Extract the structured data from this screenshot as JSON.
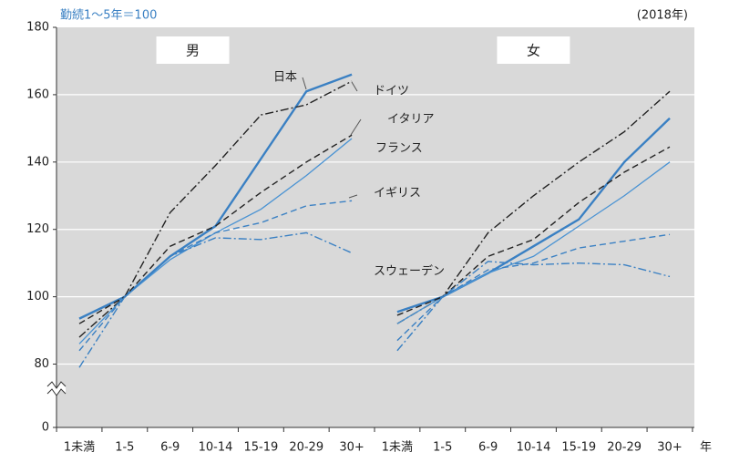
{
  "chart_data": {
    "type": "line",
    "y_label": "勤続1～5年＝100",
    "note": "(2018年)",
    "x_unit": "年",
    "ylim": [
      0,
      180
    ],
    "yticks": [
      0,
      80,
      100,
      120,
      140,
      160,
      180
    ],
    "y_break": [
      0,
      75
    ],
    "grid": true,
    "panels": [
      {
        "label": "男",
        "categories": [
          "1未満",
          "1-5",
          "6-9",
          "10-14",
          "15-19",
          "20-29",
          "30+"
        ],
        "series": [
          {
            "name": "日本",
            "color": "#3a80c3",
            "linestyle": "solid",
            "linewidth": 2.4,
            "values": [
              93.5,
              100,
              112,
              121,
              141,
              161,
              166
            ]
          },
          {
            "name": "ドイツ",
            "color": "#222222",
            "linestyle": "dashdot",
            "linewidth": 1.4,
            "values": [
              88,
              100,
              125,
              139,
              154,
              157,
              164
            ]
          },
          {
            "name": "イタリア",
            "color": "#4a93d3",
            "linestyle": "solid",
            "linewidth": 1.3,
            "values": [
              86,
              100,
              111,
              119,
              126,
              136,
              147
            ]
          },
          {
            "name": "フランス",
            "color": "#222222",
            "linestyle": "dashed",
            "linewidth": 1.4,
            "values": [
              92,
              100,
              115,
              121,
              131,
              140,
              148
            ]
          },
          {
            "name": "イギリス",
            "color": "#3a80c3",
            "linestyle": "dashed",
            "linewidth": 1.4,
            "values": [
              84,
              100,
              112,
              119,
              122,
              127,
              128.5
            ]
          },
          {
            "name": "スウェーデン",
            "color": "#3a80c3",
            "linestyle": "dashdot",
            "linewidth": 1.4,
            "values": [
              79,
              100,
              112,
              117.5,
              117,
              119,
              113
            ]
          }
        ]
      },
      {
        "label": "女",
        "categories": [
          "1未満",
          "1-5",
          "6-9",
          "10-14",
          "15-19",
          "20-29",
          "30+"
        ],
        "series": [
          {
            "color": "#3a80c3",
            "linestyle": "solid",
            "linewidth": 2.4,
            "values": [
              95.5,
              100,
              107,
              115,
              123,
              140,
              153
            ]
          },
          {
            "color": "#222222",
            "linestyle": "dashdot",
            "linewidth": 1.4,
            "values": [
              92,
              100,
              119,
              130,
              140,
              149,
              161
            ]
          },
          {
            "color": "#4a93d3",
            "linestyle": "solid",
            "linewidth": 1.3,
            "values": [
              92,
              100,
              107,
              112,
              121,
              130,
              140
            ]
          },
          {
            "color": "#222222",
            "linestyle": "dashed",
            "linewidth": 1.4,
            "values": [
              94.5,
              100,
              112,
              117,
              128,
              137,
              144.5
            ]
          },
          {
            "color": "#3a80c3",
            "linestyle": "dashed",
            "linewidth": 1.4,
            "values": [
              87,
              100,
              108,
              110,
              114.5,
              116.5,
              118.5
            ]
          },
          {
            "color": "#3a80c3",
            "linestyle": "dashdot",
            "linewidth": 1.4,
            "values": [
              84,
              100,
              110.5,
              109.5,
              110,
              109.5,
              106
            ]
          }
        ]
      }
    ]
  }
}
